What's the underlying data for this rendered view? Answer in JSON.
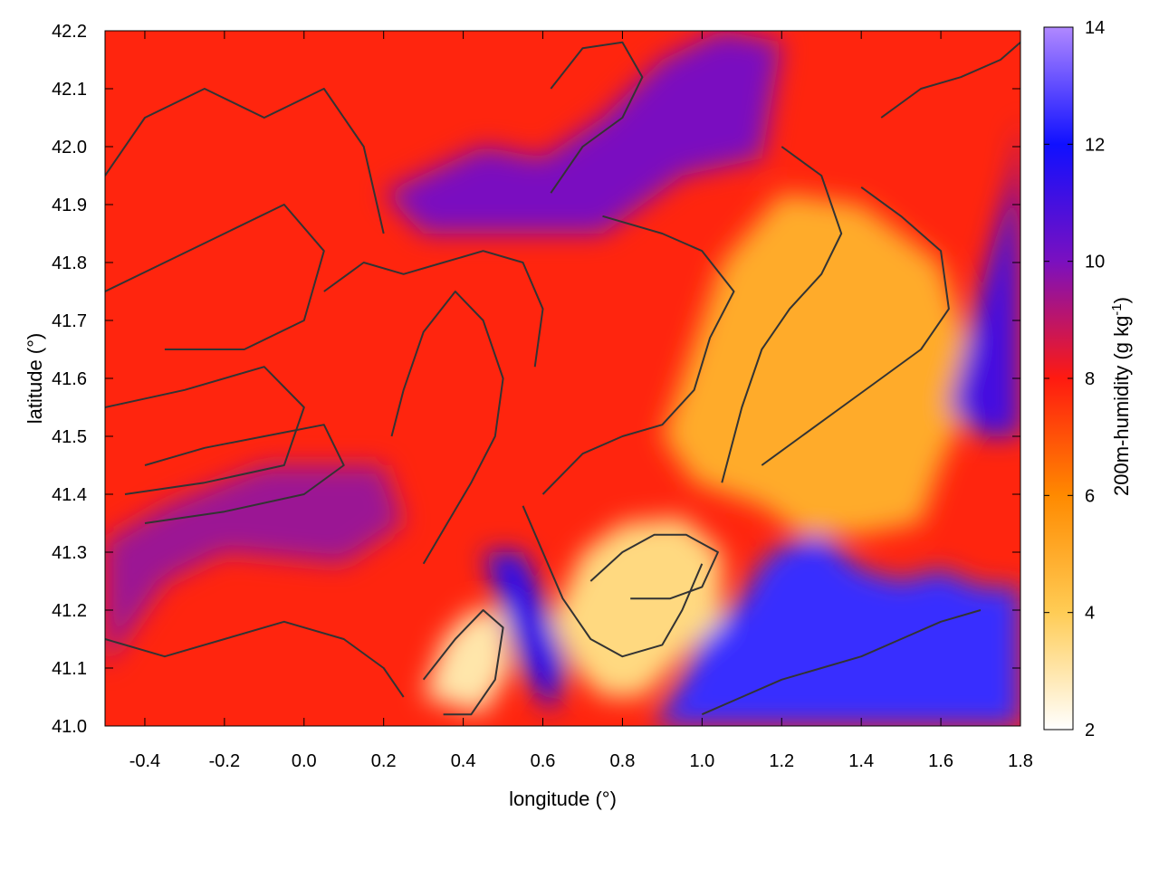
{
  "chart_data": {
    "type": "heatmap",
    "title": "",
    "xlabel": "longitude (°)",
    "ylabel": "latitude (°)",
    "xlim": [
      -0.5,
      1.8
    ],
    "ylim": [
      41.0,
      42.2
    ],
    "x_ticks": [
      "-0.4",
      "-0.2",
      "0.0",
      "0.2",
      "0.4",
      "0.6",
      "0.8",
      "1.0",
      "1.2",
      "1.4",
      "1.6",
      "1.8"
    ],
    "x_tick_values": [
      -0.4,
      -0.2,
      0.0,
      0.2,
      0.4,
      0.6,
      0.8,
      1.0,
      1.2,
      1.4,
      1.6,
      1.8
    ],
    "y_ticks": [
      "41.0",
      "41.1",
      "41.2",
      "41.3",
      "41.4",
      "41.5",
      "41.6",
      "41.7",
      "41.8",
      "41.9",
      "42.0",
      "42.1",
      "42.2"
    ],
    "y_tick_values": [
      41.0,
      41.1,
      41.2,
      41.3,
      41.4,
      41.5,
      41.6,
      41.7,
      41.8,
      41.9,
      42.0,
      42.1,
      42.2
    ],
    "colorbar": {
      "label": "200m-humidity (g kg-1)",
      "label_main": "200m-humidity (g kg",
      "label_sup": "-1",
      "label_end": ")",
      "range": [
        2,
        14
      ],
      "ticks": [
        "2",
        "4",
        "6",
        "8",
        "10",
        "12",
        "14"
      ],
      "tick_values": [
        2,
        4,
        6,
        8,
        10,
        12,
        14
      ],
      "stops": [
        {
          "value": 2,
          "color": "#ffffff"
        },
        {
          "value": 4,
          "color": "#ffcc55"
        },
        {
          "value": 6,
          "color": "#ff8a00"
        },
        {
          "value": 8,
          "color": "#ff1a10"
        },
        {
          "value": 10,
          "color": "#7a10c0"
        },
        {
          "value": 12,
          "color": "#1010ff"
        },
        {
          "value": 14,
          "color": "#b088ff"
        }
      ]
    },
    "regions": [
      {
        "name": "sea",
        "value": 12.5,
        "poly": [
          [
            0.88,
            41.0
          ],
          [
            0.95,
            41.08
          ],
          [
            1.0,
            41.15
          ],
          [
            1.1,
            41.22
          ],
          [
            1.15,
            41.28
          ],
          [
            1.2,
            41.31
          ],
          [
            1.3,
            41.33
          ],
          [
            1.4,
            41.27
          ],
          [
            1.5,
            41.25
          ],
          [
            1.6,
            41.27
          ],
          [
            1.7,
            41.24
          ],
          [
            1.8,
            41.24
          ],
          [
            1.8,
            41.0
          ]
        ]
      },
      {
        "name": "east-coast-dry",
        "value": 5.0,
        "poly": [
          [
            0.9,
            41.5
          ],
          [
            1.05,
            41.8
          ],
          [
            1.2,
            41.92
          ],
          [
            1.4,
            41.9
          ],
          [
            1.6,
            41.8
          ],
          [
            1.7,
            41.6
          ],
          [
            1.6,
            41.45
          ],
          [
            1.55,
            41.35
          ],
          [
            1.4,
            41.33
          ],
          [
            1.25,
            41.33
          ],
          [
            1.15,
            41.38
          ],
          [
            0.98,
            41.42
          ]
        ]
      },
      {
        "name": "delta-dry",
        "value": 3.5,
        "poly": [
          [
            0.62,
            41.18
          ],
          [
            0.7,
            41.3
          ],
          [
            0.8,
            41.35
          ],
          [
            0.95,
            41.36
          ],
          [
            1.05,
            41.3
          ],
          [
            1.05,
            41.18
          ],
          [
            0.95,
            41.12
          ],
          [
            0.85,
            41.05
          ],
          [
            0.75,
            41.05
          ],
          [
            0.68,
            41.1
          ]
        ]
      },
      {
        "name": "southwest-dry",
        "value": 3.0,
        "poly": [
          [
            0.3,
            41.05
          ],
          [
            0.35,
            41.15
          ],
          [
            0.42,
            41.2
          ],
          [
            0.5,
            41.2
          ],
          [
            0.52,
            41.1
          ],
          [
            0.45,
            41.02
          ]
        ]
      },
      {
        "name": "central-moist",
        "value": 9.5,
        "poly": [
          [
            -0.5,
            41.1
          ],
          [
            -0.35,
            41.25
          ],
          [
            -0.2,
            41.3
          ],
          [
            0.1,
            41.28
          ],
          [
            0.25,
            41.35
          ],
          [
            0.2,
            41.45
          ],
          [
            -0.1,
            41.45
          ],
          [
            -0.35,
            41.38
          ],
          [
            -0.5,
            41.32
          ]
        ]
      },
      {
        "name": "north-moist",
        "value": 10.0,
        "poly": [
          [
            0.2,
            41.92
          ],
          [
            0.45,
            42.0
          ],
          [
            0.6,
            41.98
          ],
          [
            0.75,
            42.05
          ],
          [
            0.9,
            42.15
          ],
          [
            1.05,
            42.2
          ],
          [
            1.2,
            42.18
          ],
          [
            1.15,
            41.98
          ],
          [
            0.95,
            41.95
          ],
          [
            0.75,
            41.85
          ],
          [
            0.55,
            41.85
          ],
          [
            0.3,
            41.85
          ]
        ]
      },
      {
        "name": "channel-moist",
        "value": 11.5,
        "poly": [
          [
            0.45,
            41.3
          ],
          [
            0.5,
            41.2
          ],
          [
            0.55,
            41.1
          ],
          [
            0.62,
            41.02
          ],
          [
            0.66,
            41.1
          ],
          [
            0.6,
            41.22
          ],
          [
            0.55,
            41.3
          ]
        ]
      },
      {
        "name": "northeast-moist",
        "value": 11.0,
        "poly": [
          [
            1.62,
            41.55
          ],
          [
            1.7,
            41.75
          ],
          [
            1.78,
            41.95
          ],
          [
            1.8,
            42.05
          ],
          [
            1.8,
            41.5
          ],
          [
            1.7,
            41.5
          ]
        ]
      }
    ],
    "contours": [
      [
        [
          -0.5,
          41.55
        ],
        [
          -0.3,
          41.58
        ],
        [
          -0.1,
          41.62
        ],
        [
          0.0,
          41.55
        ],
        [
          -0.05,
          41.45
        ],
        [
          -0.25,
          41.42
        ],
        [
          -0.45,
          41.4
        ]
      ],
      [
        [
          -0.5,
          41.75
        ],
        [
          -0.35,
          41.8
        ],
        [
          -0.2,
          41.85
        ],
        [
          -0.05,
          41.9
        ],
        [
          0.05,
          41.82
        ],
        [
          0.0,
          41.7
        ],
        [
          -0.15,
          41.65
        ],
        [
          -0.35,
          41.65
        ]
      ],
      [
        [
          -0.5,
          41.95
        ],
        [
          -0.4,
          42.05
        ],
        [
          -0.25,
          42.1
        ],
        [
          -0.1,
          42.05
        ],
        [
          0.05,
          42.1
        ],
        [
          0.15,
          42.0
        ],
        [
          0.2,
          41.85
        ]
      ],
      [
        [
          -0.4,
          41.35
        ],
        [
          -0.2,
          41.37
        ],
        [
          0.0,
          41.4
        ],
        [
          0.1,
          41.45
        ],
        [
          0.05,
          41.52
        ],
        [
          -0.1,
          41.5
        ],
        [
          -0.25,
          41.48
        ],
        [
          -0.4,
          41.45
        ]
      ],
      [
        [
          0.3,
          41.28
        ],
        [
          0.36,
          41.35
        ],
        [
          0.42,
          41.42
        ],
        [
          0.48,
          41.5
        ],
        [
          0.5,
          41.6
        ],
        [
          0.45,
          41.7
        ],
        [
          0.38,
          41.75
        ],
        [
          0.3,
          41.68
        ],
        [
          0.25,
          41.58
        ],
        [
          0.22,
          41.5
        ]
      ],
      [
        [
          0.6,
          41.4
        ],
        [
          0.7,
          41.47
        ],
        [
          0.8,
          41.5
        ],
        [
          0.9,
          41.52
        ],
        [
          0.98,
          41.58
        ],
        [
          1.02,
          41.67
        ],
        [
          1.08,
          41.75
        ],
        [
          1.0,
          41.82
        ],
        [
          0.9,
          41.85
        ],
        [
          0.75,
          41.88
        ]
      ],
      [
        [
          0.55,
          41.38
        ],
        [
          0.6,
          41.3
        ],
        [
          0.65,
          41.22
        ],
        [
          0.72,
          41.15
        ],
        [
          0.8,
          41.12
        ],
        [
          0.9,
          41.14
        ],
        [
          0.95,
          41.2
        ],
        [
          1.0,
          41.28
        ]
      ],
      [
        [
          0.72,
          41.25
        ],
        [
          0.8,
          41.3
        ],
        [
          0.88,
          41.33
        ],
        [
          0.96,
          41.33
        ],
        [
          1.04,
          41.3
        ],
        [
          1.0,
          41.24
        ],
        [
          0.92,
          41.22
        ],
        [
          0.82,
          41.22
        ]
      ],
      [
        [
          1.15,
          41.45
        ],
        [
          1.25,
          41.5
        ],
        [
          1.35,
          41.55
        ],
        [
          1.45,
          41.6
        ],
        [
          1.55,
          41.65
        ],
        [
          1.62,
          41.72
        ],
        [
          1.6,
          41.82
        ],
        [
          1.5,
          41.88
        ],
        [
          1.4,
          41.93
        ]
      ],
      [
        [
          1.05,
          41.42
        ],
        [
          1.1,
          41.55
        ],
        [
          1.15,
          41.65
        ],
        [
          1.22,
          41.72
        ],
        [
          1.3,
          41.78
        ],
        [
          1.35,
          41.85
        ],
        [
          1.3,
          41.95
        ],
        [
          1.2,
          42.0
        ]
      ],
      [
        [
          0.3,
          41.08
        ],
        [
          0.38,
          41.15
        ],
        [
          0.45,
          41.2
        ],
        [
          0.5,
          41.17
        ],
        [
          0.48,
          41.08
        ],
        [
          0.42,
          41.02
        ],
        [
          0.35,
          41.02
        ]
      ],
      [
        [
          1.7,
          41.2
        ],
        [
          1.6,
          41.18
        ],
        [
          1.5,
          41.15
        ],
        [
          1.4,
          41.12
        ],
        [
          1.3,
          41.1
        ],
        [
          1.2,
          41.08
        ],
        [
          1.1,
          41.05
        ],
        [
          1.0,
          41.02
        ]
      ],
      [
        [
          0.05,
          41.75
        ],
        [
          0.15,
          41.8
        ],
        [
          0.25,
          41.78
        ],
        [
          0.35,
          41.8
        ],
        [
          0.45,
          41.82
        ],
        [
          0.55,
          41.8
        ],
        [
          0.6,
          41.72
        ],
        [
          0.58,
          41.62
        ]
      ],
      [
        [
          -0.5,
          41.15
        ],
        [
          -0.35,
          41.12
        ],
        [
          -0.2,
          41.15
        ],
        [
          -0.05,
          41.18
        ],
        [
          0.1,
          41.15
        ],
        [
          0.2,
          41.1
        ],
        [
          0.25,
          41.05
        ]
      ],
      [
        [
          0.62,
          41.92
        ],
        [
          0.7,
          42.0
        ],
        [
          0.8,
          42.05
        ],
        [
          0.85,
          42.12
        ],
        [
          0.8,
          42.18
        ],
        [
          0.7,
          42.17
        ],
        [
          0.62,
          42.1
        ]
      ],
      [
        [
          1.45,
          42.05
        ],
        [
          1.55,
          42.1
        ],
        [
          1.65,
          42.12
        ],
        [
          1.75,
          42.15
        ],
        [
          1.8,
          42.18
        ]
      ]
    ]
  }
}
